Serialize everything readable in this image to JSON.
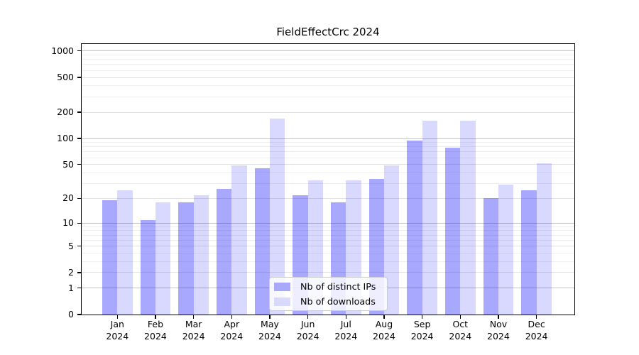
{
  "chart_data": {
    "type": "bar",
    "title": "FieldEffectCrc 2024",
    "categories": [
      "Jan 2024",
      "Feb 2024",
      "Mar 2024",
      "Apr 2024",
      "May 2024",
      "Jun 2024",
      "Jul 2024",
      "Aug 2024",
      "Sep 2024",
      "Oct 2024",
      "Nov 2024",
      "Dec 2024"
    ],
    "month_labels": [
      "Jan",
      "Feb",
      "Mar",
      "Apr",
      "May",
      "Jun",
      "Jul",
      "Aug",
      "Sep",
      "Oct",
      "Nov",
      "Dec"
    ],
    "year_label": "2024",
    "series": [
      {
        "name": "Nb of distinct IPs",
        "color": "rgba(0,0,255,0.34)",
        "swatch_hex": "#a9a9fb",
        "values": [
          19,
          11,
          18,
          26,
          45,
          22,
          18,
          34,
          95,
          78,
          20,
          25
        ]
      },
      {
        "name": "Nb of downloads",
        "color": "rgba(0,0,255,0.15)",
        "swatch_hex": "#d9d9fc",
        "values": [
          25,
          18,
          22,
          49,
          170,
          33,
          33,
          49,
          160,
          160,
          29,
          52
        ]
      }
    ],
    "yscale": "log10(1+v)",
    "ylim": [
      0,
      1240
    ],
    "yticks": [
      0,
      1,
      2,
      5,
      10,
      20,
      50,
      100,
      200,
      500,
      1000
    ],
    "ytick_labels": [
      "0",
      "1",
      "2",
      "5",
      "10",
      "20",
      "50",
      "100",
      "200",
      "500",
      "1000"
    ],
    "minor_gridlines": [
      3,
      4,
      6,
      7,
      8,
      9,
      30,
      40,
      60,
      70,
      80,
      90,
      300,
      400,
      600,
      700,
      800,
      900
    ],
    "grid": true,
    "legend_position": "lower center",
    "colors": {
      "background": "#ffffff",
      "spine": "#000000",
      "grid_decade": "#c4c4c4",
      "grid_labeled": "#e2e2e2",
      "grid_minor": "#efefef",
      "legend_border": "#cccccc"
    }
  }
}
